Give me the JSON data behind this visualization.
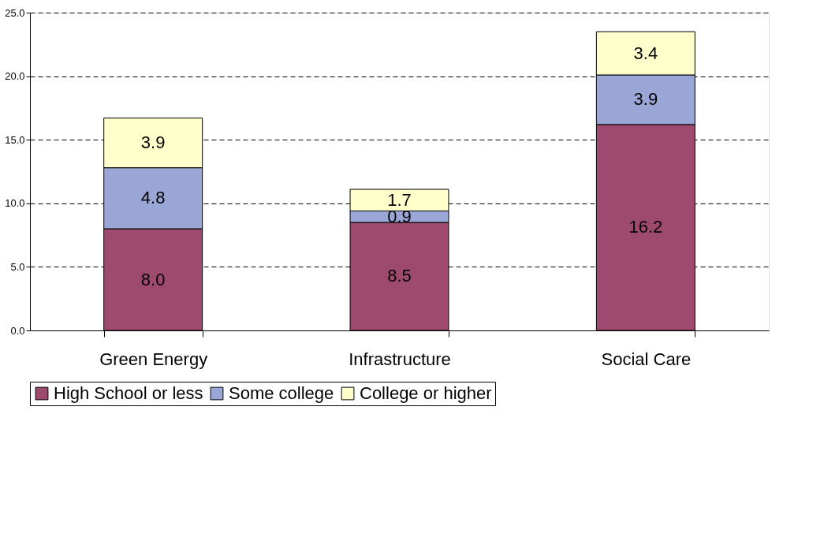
{
  "chart_data": {
    "type": "bar",
    "stacked": true,
    "categories": [
      "Green Energy",
      "Infrastructure",
      "Social Care"
    ],
    "series": [
      {
        "name": "High School or less",
        "color": "#9e4a6e",
        "values": [
          8.0,
          8.5,
          16.2
        ],
        "value_labels": [
          "8.0",
          "8.5",
          "16.2"
        ]
      },
      {
        "name": "Some college",
        "color": "#9aa6d6",
        "values": [
          4.8,
          0.9,
          3.9
        ],
        "value_labels": [
          "4.8",
          "0.9",
          "3.9"
        ]
      },
      {
        "name": "College or higher",
        "color": "#ffffcc",
        "values": [
          3.9,
          1.7,
          3.4
        ],
        "value_labels": [
          "3.9",
          "1.7",
          "3.4"
        ]
      }
    ],
    "ylim": [
      0,
      25
    ],
    "yticks": [
      {
        "value": 0,
        "label": "0.0"
      },
      {
        "value": 5,
        "label": "5.0"
      },
      {
        "value": 10,
        "label": "10.0"
      },
      {
        "value": 15,
        "label": "15.0"
      },
      {
        "value": 20,
        "label": "20.0"
      },
      {
        "value": 25,
        "label": "25.0"
      }
    ],
    "grid": "y",
    "legend": "bottom"
  }
}
